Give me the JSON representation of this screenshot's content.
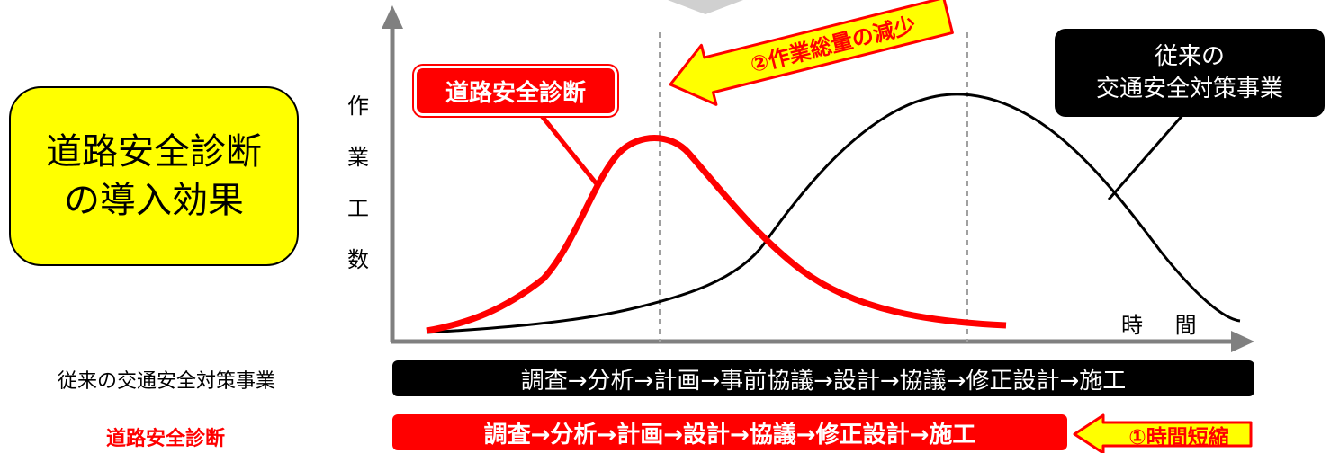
{
  "title_box": {
    "line1": "道路安全診断",
    "line2": "の導入効果"
  },
  "y_axis_label": [
    "作",
    "業",
    "工",
    "数"
  ],
  "x_axis_label": "時 間",
  "callouts": {
    "rsa_curve": "道路安全診断",
    "conventional_curve": {
      "line1": "従来の",
      "line2": "交通安全対策事業"
    }
  },
  "arrows": {
    "reduction": "②作業総量の減少",
    "time_shortening": "①時間短縮"
  },
  "process_rows": [
    {
      "label": "従来の交通安全対策事業",
      "steps": "調査→分析→計画→事前協議→設計→協議→修正設計→施工"
    },
    {
      "label": "道路安全診断",
      "steps": "調査→分析→計画→設計→協議→修正設計→施工"
    }
  ],
  "colors": {
    "rsa": "#ff0000",
    "conventional": "#000000",
    "highlight": "#ffff00",
    "axis": "#808080"
  }
}
